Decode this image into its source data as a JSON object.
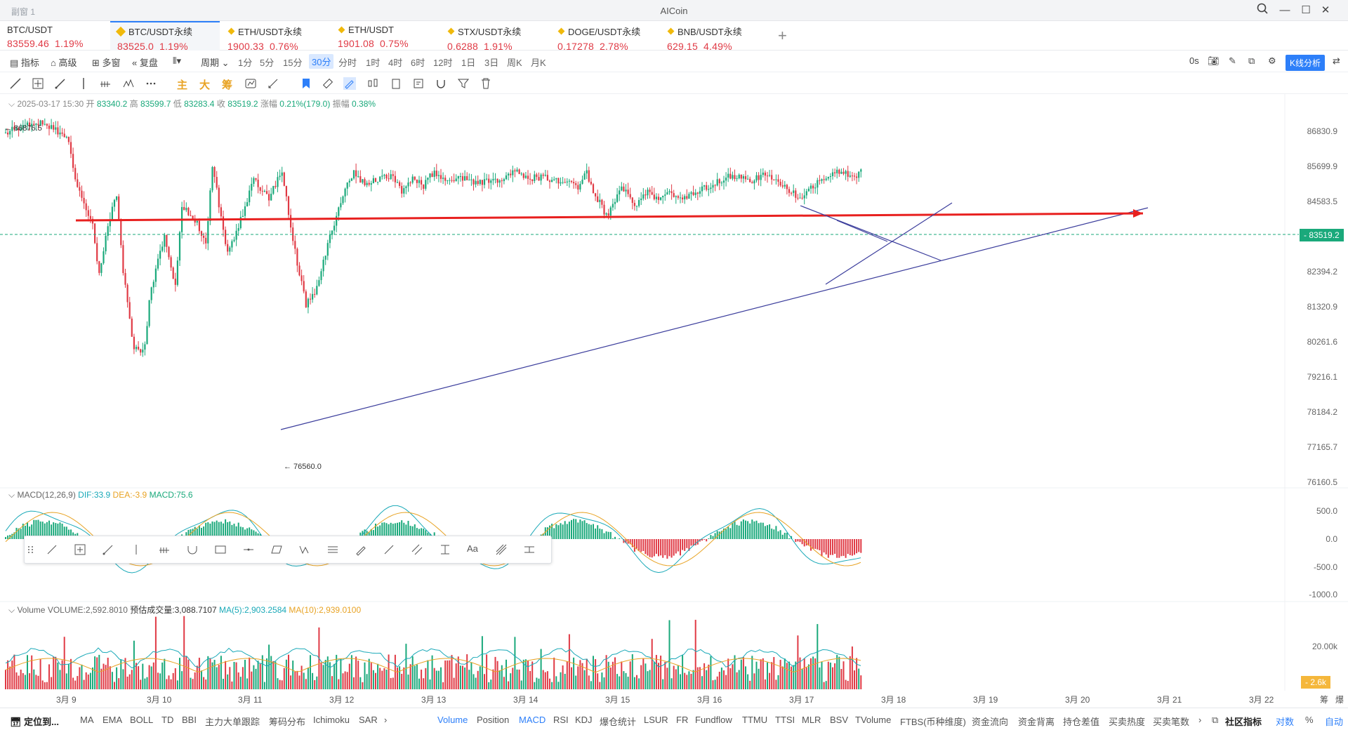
{
  "window": {
    "title": "AICoin",
    "subtitle": "副窗 1"
  },
  "tabs": [
    {
      "symbol": "BTC/USDT",
      "price": "83559.46",
      "change": "1.19%"
    },
    {
      "symbol": "BTC/USDT永续",
      "price": "83525.0",
      "change": "1.19%"
    },
    {
      "symbol": "ETH/USDT永续",
      "price": "1900.33",
      "change": "0.76%"
    },
    {
      "symbol": "ETH/USDT",
      "price": "1901.08",
      "change": "0.75%"
    },
    {
      "symbol": "STX/USDT永续",
      "price": "0.6288",
      "change": "1.91%"
    },
    {
      "symbol": "DOGE/USDT永续",
      "price": "0.17278",
      "change": "2.78%"
    },
    {
      "symbol": "BNB/USDT永续",
      "price": "629.15",
      "change": "4.49%"
    }
  ],
  "toolbar": {
    "indicators": "指标",
    "advanced": "高级",
    "multiwin": "多窗",
    "replay": "复盘",
    "period": "周期",
    "periods": [
      "1分",
      "5分",
      "15分",
      "30分",
      "分时",
      "1时",
      "4时",
      "6时",
      "12时",
      "1日",
      "3日",
      "周K",
      "月K"
    ],
    "selected_period": "30分",
    "countdown": "0s",
    "kline_analysis": "K线分析",
    "main_label": "主",
    "big_label": "大",
    "chip_label": "筹"
  },
  "ohlc": {
    "time": "2025-03-17 15:30",
    "open_label": "开",
    "open": "83340.2",
    "high_label": "高",
    "high": "83599.7",
    "low_label": "低",
    "low": "83283.4",
    "close_label": "收",
    "close": "83519.2",
    "change_label": "涨幅",
    "change": "0.21%(179.0)",
    "amp_label": "振幅",
    "amp": "0.38%"
  },
  "price_axis": [
    "86830.9",
    "85699.9",
    "84583.5",
    "82394.2",
    "81320.9",
    "80261.6",
    "79216.1",
    "78184.2",
    "77165.7",
    "76160.5"
  ],
  "current_price": "83519.2",
  "high_marker": "← 86876.5",
  "low_marker": "← 76560.0",
  "macd": {
    "label": "MACD(12,26,9)",
    "dif": "DIF:33.9",
    "dea": "DEA:-3.9",
    "macd": "MACD:75.6",
    "axis": [
      "500.0",
      "0.0",
      "-500.0",
      "-1000.0"
    ]
  },
  "volume": {
    "label": "Volume",
    "vol": "VOLUME:2,592.8010",
    "est": "预估成交量:3,088.7107",
    "ma5": "MA(5):2,903.2584",
    "ma10": "MA(10):2,939.0100",
    "axis": "20.00k",
    "current": "2.6k"
  },
  "dates": [
    "3月 9",
    "3月 10",
    "3月 11",
    "3月 12",
    "3月 13",
    "3月 14",
    "3月 15",
    "3月 16",
    "3月 17",
    "3月 18",
    "3月 19",
    "3月 20",
    "3月 21",
    "3月 22"
  ],
  "date_right": [
    "筹",
    "爆"
  ],
  "bottom": {
    "locate": "定位到...",
    "left_items": [
      "MA",
      "EMA",
      "BOLL",
      "TD",
      "BBI",
      "主力大单跟踪",
      "筹码分布",
      "Ichimoku",
      "SAR"
    ],
    "right_items": [
      "Volume",
      "Position",
      "MACD",
      "RSI",
      "KDJ",
      "爆仓统计",
      "LSUR",
      "FR",
      "Fundflow",
      "TTMU",
      "TTSI",
      "MLR",
      "BSV",
      "TVolume",
      "FTBS(币种维度)",
      "资金流向",
      "资金背离",
      "持仓差值",
      "买卖热度",
      "买卖笔数"
    ],
    "community": "社区指标",
    "log": "对数",
    "pct": "%",
    "auto": "自动"
  },
  "colors": {
    "up": "#1aa97b",
    "down": "#e03a45",
    "accent": "#2d7ff9",
    "trend": "#3b3d9c",
    "resistance": "#e8201f"
  }
}
